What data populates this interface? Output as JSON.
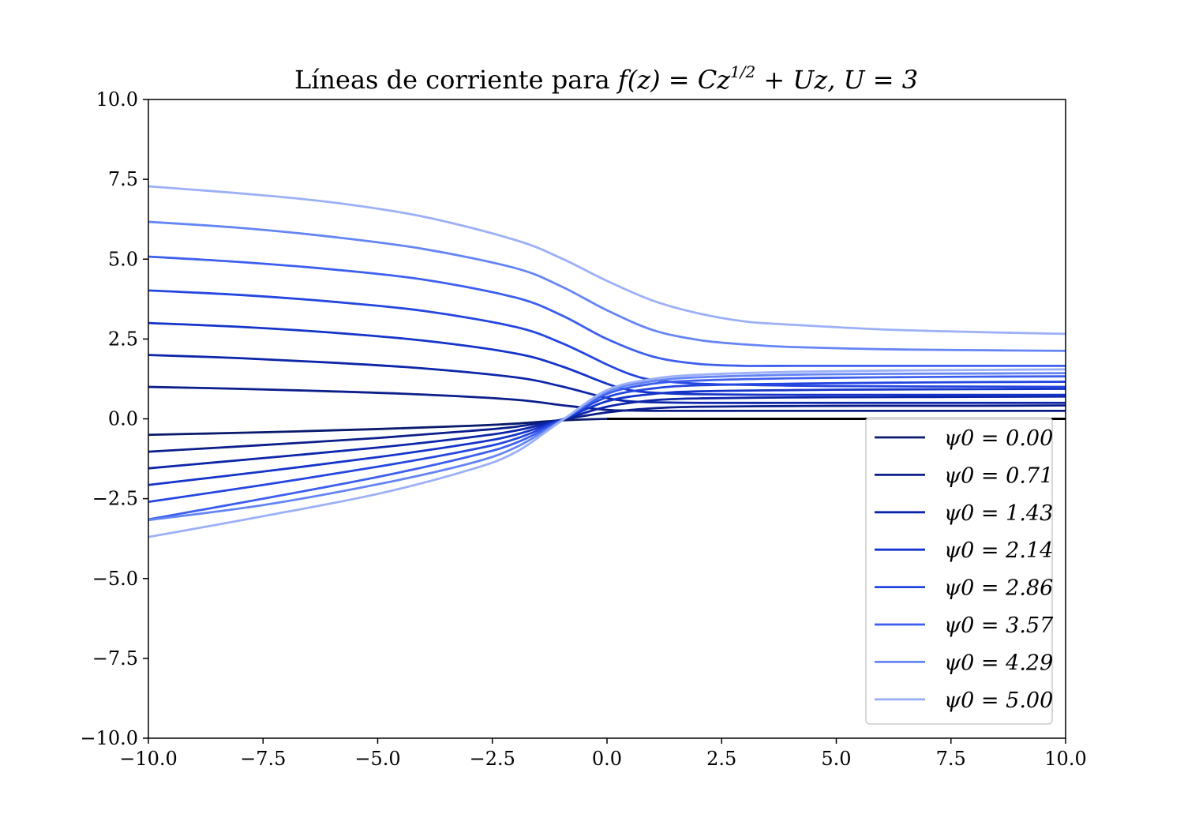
{
  "chart_data": {
    "type": "line",
    "title": "Líneas de corriente para f(z) = Cz^(1/2) + Uz, U = 3",
    "title_parts": {
      "text": "Líneas de corriente para ",
      "math": "f(z) = Cz",
      "sup": "1/2",
      "math_rest": " + Uz, U = 3"
    },
    "xlabel": "",
    "ylabel": "",
    "xlim": [
      -10,
      10
    ],
    "ylim": [
      -10,
      10
    ],
    "x_ticks": [
      "−10.0",
      "−7.5",
      "−5.0",
      "−2.5",
      "0.0",
      "2.5",
      "5.0",
      "7.5",
      "10.0"
    ],
    "y_ticks": [
      "10.0",
      "7.5",
      "5.0",
      "2.5",
      "0.0",
      "−2.5",
      "−5.0",
      "−7.5",
      "−10.0"
    ],
    "grid": false,
    "legend_position": "lower-right",
    "wall": {
      "x": [
        0,
        10
      ],
      "y": 0,
      "color": "#000000"
    },
    "series": [
      {
        "name": "ψ0 = 0.00",
        "color": "#081a6b",
        "lines": [
          {
            "x": [
              -10,
              -7.5,
              -5,
              -3,
              -2,
              -1,
              0,
              1,
              2,
              4,
              6,
              8,
              10
            ],
            "y": [
              -0.5,
              -0.42,
              -0.32,
              -0.22,
              -0.15,
              -0.05,
              0.0,
              0.0,
              0.0,
              0.0,
              0.0,
              0.0,
              0.0
            ]
          }
        ]
      },
      {
        "name": "ψ0 = 0.71",
        "color": "#0b1e8a",
        "lines": [
          {
            "x": [
              -10,
              -8,
              -6,
              -4,
              -2,
              -1,
              0,
              0.5,
              1,
              2,
              4,
              6,
              8,
              10
            ],
            "y": [
              1.0,
              0.94,
              0.86,
              0.76,
              0.6,
              0.43,
              0.28,
              0.26,
              0.25,
              0.25,
              0.25,
              0.25,
              0.25,
              0.25
            ]
          },
          {
            "x": [
              -10,
              -7.5,
              -5,
              -3,
              -2,
              -1,
              0,
              1,
              2,
              4,
              6,
              8,
              10
            ],
            "y": [
              -1.03,
              -0.82,
              -0.6,
              -0.38,
              -0.25,
              -0.03,
              0.2,
              0.33,
              0.38,
              0.4,
              0.41,
              0.41,
              0.42
            ]
          }
        ]
      },
      {
        "name": "ψ0 = 1.43",
        "color": "#0d25a8",
        "lines": [
          {
            "x": [
              -10,
              -8,
              -6,
              -4,
              -2,
              -1,
              0,
              0.5,
              1,
              2,
              4,
              6,
              8,
              10
            ],
            "y": [
              2.0,
              1.9,
              1.76,
              1.58,
              1.3,
              1.02,
              0.65,
              0.55,
              0.52,
              0.5,
              0.5,
              0.5,
              0.5,
              0.5
            ]
          },
          {
            "x": [
              -10,
              -7.5,
              -5,
              -3,
              -2,
              -1,
              0,
              1,
              2,
              4,
              6,
              8,
              10
            ],
            "y": [
              -1.55,
              -1.23,
              -0.9,
              -0.58,
              -0.37,
              -0.03,
              0.38,
              0.58,
              0.64,
              0.67,
              0.68,
              0.69,
              0.7
            ]
          }
        ]
      },
      {
        "name": "ψ0 = 2.14",
        "color": "#1534c9",
        "lines": [
          {
            "x": [
              -10,
              -8,
              -6,
              -4,
              -2,
              -1,
              0,
              0.5,
              1,
              2,
              4,
              6,
              8,
              10
            ],
            "y": [
              3.0,
              2.88,
              2.7,
              2.45,
              2.05,
              1.65,
              1.1,
              0.9,
              0.82,
              0.77,
              0.75,
              0.75,
              0.75,
              0.75
            ]
          },
          {
            "x": [
              -10,
              -7.5,
              -5,
              -3,
              -2,
              -1,
              0,
              1,
              2,
              4,
              6,
              8,
              10
            ],
            "y": [
              -2.07,
              -1.65,
              -1.2,
              -0.78,
              -0.5,
              -0.03,
              0.55,
              0.78,
              0.86,
              0.9,
              0.92,
              0.93,
              0.94
            ]
          }
        ]
      },
      {
        "name": "ψ0 = 2.86",
        "color": "#2446e0",
        "lines": [
          {
            "x": [
              -10,
              -8,
              -6,
              -4,
              -2,
              -1,
              0,
              0.5,
              1,
              2,
              4,
              6,
              8,
              10
            ],
            "y": [
              4.02,
              3.88,
              3.67,
              3.38,
              2.88,
              2.38,
              1.7,
              1.4,
              1.22,
              1.1,
              1.04,
              1.02,
              1.01,
              1.0
            ]
          },
          {
            "x": [
              -10,
              -7.5,
              -5,
              -3,
              -2,
              -1,
              0,
              1,
              2,
              4,
              6,
              8,
              10
            ],
            "y": [
              -2.6,
              -2.07,
              -1.5,
              -0.98,
              -0.63,
              -0.04,
              0.68,
              0.95,
              1.05,
              1.1,
              1.13,
              1.15,
              1.16
            ]
          }
        ]
      },
      {
        "name": "ψ0 = 3.57",
        "color": "#3d5ff0",
        "lines": [
          {
            "x": [
              -10,
              -8,
              -6,
              -4,
              -2,
              -1,
              0,
              1,
              2,
              3,
              4,
              6,
              8,
              10
            ],
            "y": [
              5.08,
              4.91,
              4.68,
              4.36,
              3.8,
              3.25,
              2.5,
              1.95,
              1.72,
              1.66,
              1.66,
              1.66,
              1.66,
              1.66
            ]
          },
          {
            "x": [
              -10,
              -7.5,
              -5,
              -3,
              -2,
              -1,
              0,
              1,
              2,
              4,
              6,
              8,
              10
            ],
            "y": [
              -3.15,
              -2.5,
              -1.82,
              -1.18,
              -0.76,
              -0.05,
              0.78,
              1.1,
              1.2,
              1.27,
              1.3,
              1.32,
              1.33
            ]
          }
        ]
      },
      {
        "name": "ψ0 = 4.29",
        "color": "#6585f4",
        "lines": [
          {
            "x": [
              -10,
              -8,
              -6,
              -4,
              -2,
              -1,
              0,
              1,
              2,
              3,
              4,
              6,
              8,
              10
            ],
            "y": [
              6.17,
              5.98,
              5.7,
              5.32,
              4.72,
              4.15,
              3.4,
              2.78,
              2.47,
              2.33,
              2.25,
              2.18,
              2.15,
              2.13
            ]
          },
          {
            "x": [
              -10,
              -7.5,
              -5,
              -3,
              -2,
              -1,
              0,
              1,
              2,
              4,
              6,
              8,
              10
            ],
            "y": [
              -3.17,
              -2.7,
              -2.05,
              -1.4,
              -0.9,
              -0.06,
              0.85,
              1.18,
              1.3,
              1.38,
              1.41,
              1.42,
              1.43
            ]
          }
        ]
      },
      {
        "name": "ψ0 = 5.00",
        "color": "#9bb0f7",
        "lines": [
          {
            "x": [
              -10,
              -8,
              -6,
              -4,
              -2,
              -1,
              0,
              1,
              2,
              3,
              4,
              6,
              8,
              10
            ],
            "y": [
              7.28,
              7.06,
              6.78,
              6.33,
              5.6,
              5.03,
              4.32,
              3.7,
              3.3,
              3.05,
              2.95,
              2.8,
              2.72,
              2.66
            ]
          },
          {
            "x": [
              -10,
              -7.5,
              -5,
              -3,
              -2,
              -1,
              0,
              1,
              2,
              4,
              6,
              8,
              10
            ],
            "y": [
              -3.7,
              -3.05,
              -2.35,
              -1.6,
              -1.05,
              -0.07,
              0.9,
              1.25,
              1.38,
              1.47,
              1.51,
              1.53,
              1.55
            ]
          }
        ]
      }
    ]
  }
}
